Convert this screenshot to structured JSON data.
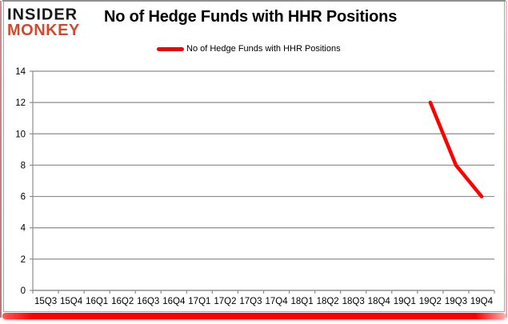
{
  "logo": {
    "line1": "INSIDER",
    "line2": "MONKEY",
    "line1_color": "#171717",
    "line2_color": "#d04a2e"
  },
  "header": {
    "title": "No of Hedge Funds with HHR Positions"
  },
  "legend": {
    "label": "No of Hedge Funds with HHR Positions",
    "swatch_color": "#ff0000"
  },
  "chart_data": {
    "type": "line",
    "title": "No of Hedge Funds with HHR Positions",
    "categories": [
      "15Q3",
      "15Q4",
      "16Q1",
      "16Q2",
      "16Q3",
      "16Q4",
      "17Q1",
      "17Q2",
      "17Q3",
      "17Q4",
      "18Q1",
      "18Q2",
      "18Q3",
      "18Q4",
      "19Q1",
      "19Q2",
      "19Q3",
      "19Q4"
    ],
    "series": [
      {
        "name": "No of Hedge Funds with HHR Positions",
        "color": "#ff0000",
        "values": [
          null,
          null,
          null,
          null,
          null,
          null,
          null,
          null,
          null,
          null,
          null,
          null,
          null,
          null,
          null,
          12,
          8,
          6
        ]
      }
    ],
    "xlabel": "",
    "ylabel": "",
    "ylim": [
      0,
      14
    ],
    "ytick_step": 2,
    "grid": true,
    "legend_position": "top"
  },
  "colors": {
    "grid": "#8c8c8c",
    "axis": "#8c8c8c",
    "tick_text": "#000000",
    "series": "#ff0000"
  }
}
